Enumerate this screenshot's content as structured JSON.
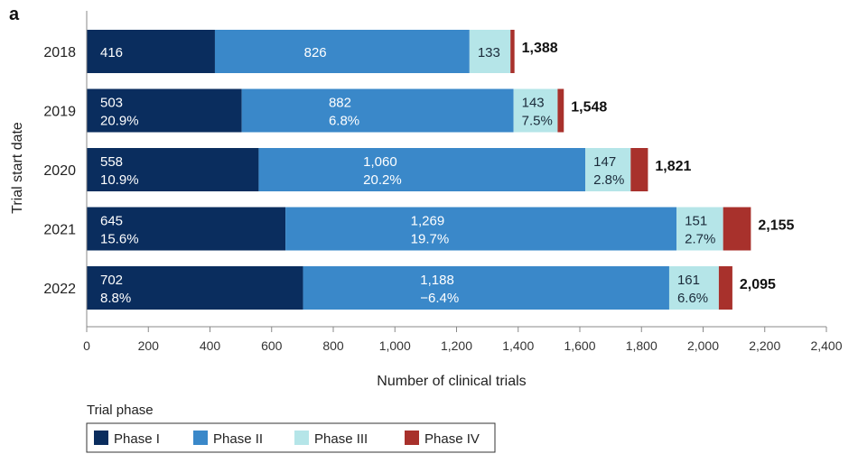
{
  "panel_label": "a",
  "chart_data": {
    "type": "bar",
    "orientation": "horizontal",
    "stacked": true,
    "categories": [
      "2018",
      "2019",
      "2020",
      "2021",
      "2022"
    ],
    "series": [
      {
        "name": "Phase I",
        "color": "#0a2d5e",
        "label_color": "#ffffff",
        "values": [
          416,
          503,
          558,
          645,
          702
        ],
        "value_labels": [
          "416",
          "503",
          "558",
          "645",
          "702"
        ],
        "change_labels": [
          "",
          "20.9%",
          "10.9%",
          "15.6%",
          "8.8%"
        ]
      },
      {
        "name": "Phase II",
        "color": "#3a88c9",
        "label_color": "#ffffff",
        "values": [
          826,
          882,
          1060,
          1269,
          1188
        ],
        "value_labels": [
          "826",
          "882",
          "1,060",
          "1,269",
          "1,188"
        ],
        "change_labels": [
          "",
          "6.8%",
          "20.2%",
          "19.7%",
          "−6.4%"
        ]
      },
      {
        "name": "Phase III",
        "color": "#b5e5e8",
        "label_color": "#1b2b3a",
        "values": [
          133,
          143,
          147,
          151,
          161
        ],
        "value_labels": [
          "133",
          "143",
          "147",
          "151",
          "161"
        ],
        "change_labels": [
          "",
          "7.5%",
          "2.8%",
          "2.7%",
          "6.6%"
        ]
      },
      {
        "name": "Phase IV",
        "color": "#a8312c",
        "label_color": "#ffffff",
        "values": [
          13,
          20,
          56,
          90,
          44
        ],
        "value_labels": [
          "",
          "",
          "",
          "",
          ""
        ],
        "change_labels": [
          "",
          "",
          "",
          "",
          ""
        ]
      }
    ],
    "totals": [
      "1,388",
      "1,548",
      "1,821",
      "2,155",
      "2,095"
    ],
    "xlabel": "Number of clinical trials",
    "ylabel": "Trial start date",
    "xlim": [
      0,
      2400
    ],
    "xticks": [
      0,
      200,
      400,
      600,
      800,
      1000,
      1200,
      1400,
      1600,
      1800,
      2000,
      2200,
      2400
    ],
    "xtick_labels": [
      "0",
      "200",
      "400",
      "600",
      "800",
      "1,000",
      "1,200",
      "1,400",
      "1,600",
      "1,800",
      "2,000",
      "2,200",
      "2,400"
    ],
    "grid": false,
    "legend": {
      "title": "Trial phase",
      "position": "bottom-left",
      "entries": [
        "Phase I",
        "Phase II",
        "Phase III",
        "Phase IV"
      ]
    }
  }
}
